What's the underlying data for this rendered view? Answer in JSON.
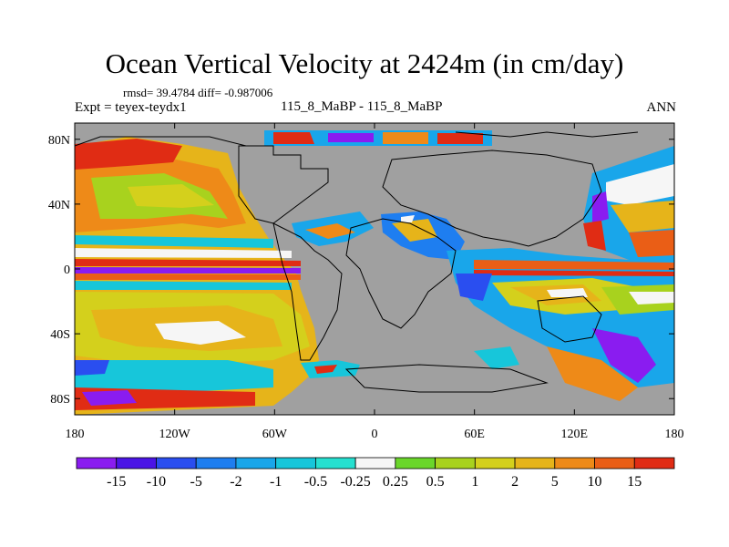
{
  "title": "Ocean Vertical Velocity at 2424m (in cm/day)",
  "stats_text": "rmsd= 39.4784  diff= -0.987006",
  "left_label": "Expt = teyex-teydx1",
  "center_label": "115_8_MaBP - 115_8_MaBP",
  "right_label": "ANN",
  "lat_ticks": [
    {
      "value": 80,
      "label": "80N"
    },
    {
      "value": 40,
      "label": "40N"
    },
    {
      "value": 0,
      "label": "0"
    },
    {
      "value": -40,
      "label": "40S"
    },
    {
      "value": -80,
      "label": "80S"
    }
  ],
  "lon_ticks": [
    {
      "value": -180,
      "label": "180"
    },
    {
      "value": -120,
      "label": "120W"
    },
    {
      "value": -60,
      "label": "60W"
    },
    {
      "value": 0,
      "label": "0"
    },
    {
      "value": 60,
      "label": "60E"
    },
    {
      "value": 120,
      "label": "120E"
    },
    {
      "value": 180,
      "label": "180"
    }
  ],
  "lon_range": [
    -180,
    180
  ],
  "lat_range": [
    -90,
    90
  ],
  "colorbar": {
    "colors": [
      "#8a1cf0",
      "#4a14e6",
      "#2a4ef0",
      "#1e7ef0",
      "#19a6ea",
      "#17c6da",
      "#26e0d0",
      "#f6f6f6",
      "#6ad62a",
      "#a8d21e",
      "#d4d01c",
      "#e6b41a",
      "#ee8a18",
      "#ea5e16",
      "#e02c14"
    ],
    "labels": [
      "-15",
      "-10",
      "-5",
      "-2",
      "-1",
      "-0.5",
      "-0.25",
      "0.25",
      "0.5",
      "1",
      "2",
      "5",
      "10",
      "15"
    ]
  },
  "land_color": "#a0a0a0"
}
